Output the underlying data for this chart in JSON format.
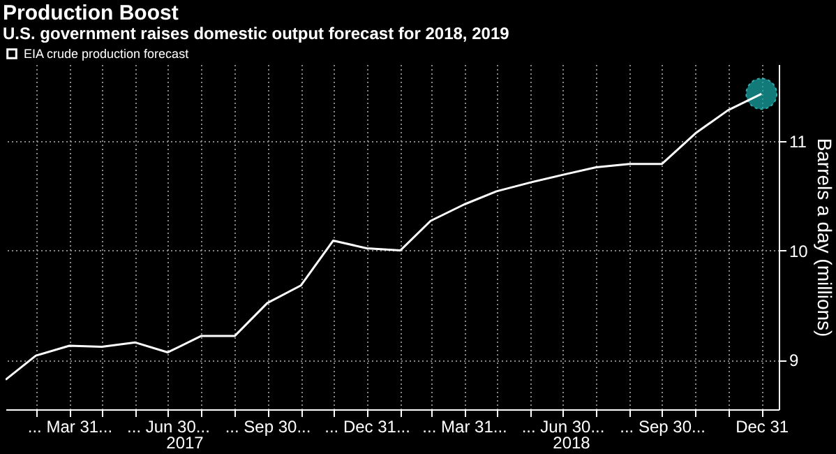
{
  "chart_data": {
    "type": "line",
    "title": "Production Boost",
    "subtitle": "U.S. government raises domestic output forecast for 2018, 2019",
    "ylabel": "Barrels a day (millions)",
    "x": [
      "2017-01-31",
      "2017-02-28",
      "2017-03-31",
      "2017-04-30",
      "2017-05-31",
      "2017-06-30",
      "2017-07-31",
      "2017-08-31",
      "2017-09-30",
      "2017-10-31",
      "2017-11-30",
      "2017-12-31",
      "2018-01-31",
      "2018-02-28",
      "2018-03-31",
      "2018-04-30",
      "2018-05-31",
      "2018-06-30",
      "2018-07-31",
      "2018-08-31",
      "2018-09-30",
      "2018-10-31",
      "2018-11-30",
      "2018-12-31"
    ],
    "series": [
      {
        "name": "EIA crude production forecast",
        "marker": "none",
        "color": "#ffffff",
        "values": [
          8.82,
          9.04,
          9.13,
          9.12,
          9.16,
          9.07,
          9.22,
          9.22,
          9.52,
          9.68,
          10.09,
          10.02,
          10.0,
          10.27,
          10.42,
          10.54,
          10.62,
          10.69,
          10.76,
          10.79,
          10.79,
          11.07,
          11.28,
          11.43
        ]
      },
      {
        "type": "scatter",
        "marker": "circle",
        "color": "#1aa3a3",
        "x": [
          "2018-12-31"
        ],
        "values": [
          11.43
        ]
      }
    ],
    "xlim": [
      "2017-01-31",
      "2019-01-16"
    ],
    "ylim": [
      8.55,
      11.7
    ],
    "yticks": [
      9,
      10,
      11
    ],
    "xticks": [
      {
        "value": "2017-02-28",
        "label": null
      },
      {
        "value": "2017-03-31",
        "label": "... Mar 31..."
      },
      {
        "value": "2017-04-30",
        "label": null
      },
      {
        "value": "2017-05-31",
        "label": null
      },
      {
        "value": "2017-06-30",
        "label": "... Jun 30..."
      },
      {
        "value": "2017-07-31",
        "label": null
      },
      {
        "value": "2017-08-31",
        "label": null
      },
      {
        "value": "2017-09-30",
        "label": "... Sep 30..."
      },
      {
        "value": "2017-10-31",
        "label": null
      },
      {
        "value": "2017-11-30",
        "label": null
      },
      {
        "value": "2017-12-31",
        "label": "... Dec 31..."
      },
      {
        "value": "2018-01-31",
        "label": null
      },
      {
        "value": "2018-02-28",
        "label": null
      },
      {
        "value": "2018-03-31",
        "label": "... Mar 31..."
      },
      {
        "value": "2018-04-30",
        "label": null
      },
      {
        "value": "2018-05-31",
        "label": null
      },
      {
        "value": "2018-06-30",
        "label": "... Jun 30..."
      },
      {
        "value": "2018-07-31",
        "label": null
      },
      {
        "value": "2018-08-31",
        "label": null
      },
      {
        "value": "2018-09-30",
        "label": "... Sep 30..."
      },
      {
        "value": "2018-10-31",
        "label": null
      },
      {
        "value": "2018-11-30",
        "label": null
      },
      {
        "value": "2018-12-31",
        "label": "Dec 31"
      }
    ],
    "annotations": [
      "2017",
      "2018"
    ],
    "grid": true,
    "legend": "top left",
    "line_style": "solid"
  }
}
